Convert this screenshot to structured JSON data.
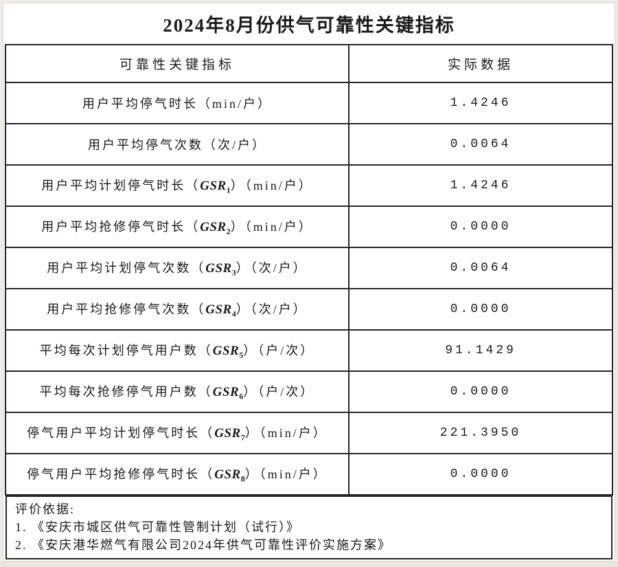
{
  "title": "2024年8月份供气可靠性关键指标",
  "table": {
    "header": {
      "indicator": "可靠性关键指标",
      "value": "实际数据"
    },
    "rows": [
      {
        "label_pre": "用户平均停气时长（min/户）",
        "gsr": "",
        "gsr_sub": "",
        "label_post": "",
        "value": "1.4246"
      },
      {
        "label_pre": "用户平均停气次数（次/户）",
        "gsr": "",
        "gsr_sub": "",
        "label_post": "",
        "value": "0.0064"
      },
      {
        "label_pre": "用户平均计划停气时长（",
        "gsr": "GSR",
        "gsr_sub": "1",
        "label_post": "）（min/户）",
        "value": "1.4246"
      },
      {
        "label_pre": "用户平均抢修停气时长（",
        "gsr": "GSR",
        "gsr_sub": "2",
        "label_post": "）（min/户）",
        "value": "0.0000"
      },
      {
        "label_pre": "用户平均计划停气次数（",
        "gsr": "GSR",
        "gsr_sub": "3",
        "label_post": "）（次/户）",
        "value": "0.0064"
      },
      {
        "label_pre": "用户平均抢修停气次数（",
        "gsr": "GSR",
        "gsr_sub": "4",
        "label_post": "）（次/户）",
        "value": "0.0000"
      },
      {
        "label_pre": "平均每次计划停气用户数（",
        "gsr": "GSR",
        "gsr_sub": "5",
        "label_post": "）（户/次）",
        "value": "91.1429"
      },
      {
        "label_pre": "平均每次抢修停气用户数（",
        "gsr": "GSR",
        "gsr_sub": "6",
        "label_post": "）（户/次）",
        "value": "0.0000"
      },
      {
        "label_pre": "停气用户平均计划停气时长（",
        "gsr": "GSR",
        "gsr_sub": "7",
        "label_post": "）（min/户）",
        "value": "221.3950"
      },
      {
        "label_pre": "停气用户平均抢修停气时长（",
        "gsr": "GSR",
        "gsr_sub": "8",
        "label_post": "）（min/户）",
        "value": "0.0000"
      }
    ]
  },
  "footer": {
    "heading": "评价依据:",
    "items": [
      "1. 《安庆市城区供气可靠性管制计划（试行）》",
      "2. 《安庆港华燃气有限公司2024年供气可靠性评价实施方案》"
    ]
  },
  "colors": {
    "border": "#262626",
    "text": "#1a1a1a",
    "page_background": "#ffffff",
    "canvas_background": "#efece7"
  }
}
